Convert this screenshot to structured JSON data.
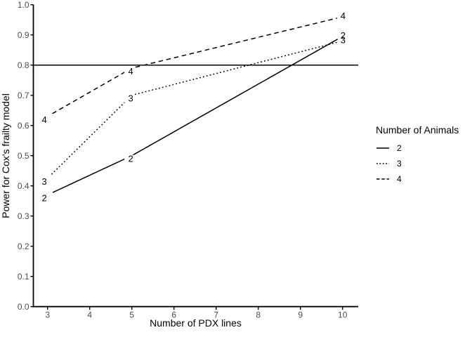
{
  "chart_data": {
    "type": "line",
    "xlabel": "Number of PDX lines",
    "ylabel": "Power for Cox's frailty model",
    "x": [
      3,
      5,
      10
    ],
    "series": [
      {
        "name": "2",
        "linestyle": "solid",
        "values": [
          0.37,
          0.5,
          0.895
        ]
      },
      {
        "name": "3",
        "linestyle": "dotted",
        "values": [
          0.425,
          0.7,
          0.88
        ]
      },
      {
        "name": "4",
        "linestyle": "dashed",
        "values": [
          0.63,
          0.79,
          0.96
        ]
      }
    ],
    "reference_line_y": 0.8,
    "x_ticks": [
      3,
      4,
      5,
      6,
      7,
      8,
      9,
      10
    ],
    "y_ticks": [
      0.0,
      0.1,
      0.2,
      0.3,
      0.4,
      0.5,
      0.6,
      0.7,
      0.8,
      0.9,
      1.0
    ],
    "xlim": [
      2.65,
      10.37
    ],
    "ylim": [
      0.0,
      1.0
    ],
    "grid": false,
    "direct_labels": true,
    "legend": {
      "title": "Number of Animals",
      "position": "right",
      "entries": [
        "2",
        "3",
        "4"
      ]
    },
    "colors": {
      "line": "#000000",
      "axis": "#000000",
      "tick_label": "#4d4d4d",
      "background": "#ffffff"
    }
  }
}
